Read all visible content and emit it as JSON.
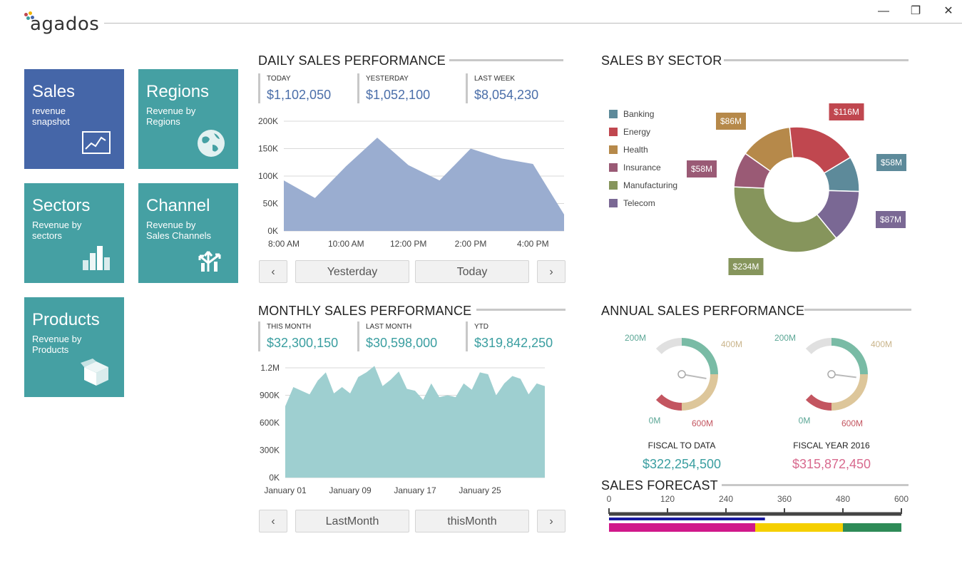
{
  "app": {
    "logo_text": "agados",
    "window_controls": {
      "minimize": "—",
      "restore": "❐",
      "close": "✕"
    }
  },
  "tiles": [
    {
      "title": "Sales",
      "subtitle": "revenue\nsnapshot",
      "icon": "line-chart-icon",
      "color": "#4566a8"
    },
    {
      "title": "Regions",
      "subtitle": "Revenue by\nRegions",
      "icon": "globe-icon",
      "color": "#45a0a3"
    },
    {
      "title": "Sectors",
      "subtitle": "Revenue by\nsectors",
      "icon": "bar-chart-icon",
      "color": "#45a0a3"
    },
    {
      "title": "Channel",
      "subtitle": "Revenue by\nSales Channels",
      "icon": "split-arrows-icon",
      "color": "#45a0a3"
    },
    {
      "title": "Products",
      "subtitle": "Revenue by\nProducts",
      "icon": "box-icon",
      "color": "#45a0a3"
    }
  ],
  "daily": {
    "title": "DAILY SALES PERFORMANCE",
    "kpis": [
      {
        "label": "TODAY",
        "value": "$1,102,050"
      },
      {
        "label": "YESTERDAY",
        "value": "$1,052,100"
      },
      {
        "label": "LAST WEEK",
        "value": "$8,054,230"
      }
    ],
    "nav": {
      "prev": "‹",
      "left": "Yesterday",
      "right": "Today",
      "next": "›"
    }
  },
  "monthly": {
    "title": "MONTHLY SALES PERFORMANCE",
    "kpis": [
      {
        "label": "THIS MONTH",
        "value": "$32,300,150"
      },
      {
        "label": "LAST MONTH",
        "value": "$30,598,000"
      },
      {
        "label": "YTD",
        "value": "$319,842,250"
      }
    ],
    "nav": {
      "prev": "‹",
      "left": "LastMonth",
      "right": "thisMonth",
      "next": "›"
    }
  },
  "sector": {
    "title": "SALES BY SECTOR"
  },
  "annual": {
    "title": "ANNUAL SALES PERFORMANCE",
    "gauges": [
      {
        "caption": "FISCAL TO DATA",
        "value": "$322,254,500",
        "value_color": "#3a9ea0",
        "labels": [
          "200M",
          "400M",
          "0M",
          "600M"
        ]
      },
      {
        "caption": "FISCAL YEAR 2016",
        "value": "$315,872,450",
        "value_color": "#d86a8e",
        "labels": [
          "200M",
          "400M",
          "0M",
          "600M"
        ]
      }
    ]
  },
  "forecast": {
    "title": "SALES FORECAST"
  },
  "chart_data": [
    {
      "type": "area",
      "name": "daily-sales",
      "title": "DAILY SALES PERFORMANCE",
      "color": "#9aadd0",
      "x": [
        0,
        1,
        2,
        3,
        4,
        5,
        6,
        7,
        8,
        9
      ],
      "values": [
        92000,
        60000,
        118000,
        170000,
        120000,
        92000,
        150000,
        132000,
        122000,
        30000
      ],
      "xlim": [
        0,
        9
      ],
      "ylim": [
        0,
        200000
      ],
      "y_ticks": [
        {
          "v": 200000,
          "label": "200K"
        },
        {
          "v": 150000,
          "label": "150K"
        },
        {
          "v": 100000,
          "label": "100K"
        },
        {
          "v": 50000,
          "label": "50K"
        },
        {
          "v": 0,
          "label": "0K"
        }
      ],
      "x_ticks": [
        {
          "x": 0,
          "label": "8:00 AM"
        },
        {
          "x": 2,
          "label": "10:00 AM"
        },
        {
          "x": 4,
          "label": "12:00 PM"
        },
        {
          "x": 6,
          "label": "2:00 PM"
        },
        {
          "x": 8,
          "label": "4:00 PM"
        }
      ]
    },
    {
      "type": "area",
      "name": "monthly-sales",
      "title": "MONTHLY SALES PERFORMANCE",
      "color": "#9ecfd0",
      "x": [
        0,
        1,
        2,
        3,
        4,
        5,
        6,
        7,
        8,
        9,
        10,
        11,
        12,
        13,
        14,
        15,
        16,
        17,
        18,
        19,
        20,
        21,
        22,
        23,
        24,
        25,
        26,
        27,
        28,
        29,
        30,
        31,
        32
      ],
      "values": [
        780000,
        990000,
        950000,
        910000,
        1060000,
        1150000,
        920000,
        990000,
        920000,
        1100000,
        1150000,
        1220000,
        1000000,
        1070000,
        1160000,
        970000,
        950000,
        850000,
        1030000,
        880000,
        900000,
        880000,
        1030000,
        960000,
        1150000,
        1130000,
        900000,
        1030000,
        1110000,
        1080000,
        910000,
        1030000,
        1000000
      ],
      "xlim": [
        0,
        32
      ],
      "ylim": [
        0,
        1200000
      ],
      "y_ticks": [
        {
          "v": 1200000,
          "label": "1.2M"
        },
        {
          "v": 900000,
          "label": "900K"
        },
        {
          "v": 600000,
          "label": "600K"
        },
        {
          "v": 300000,
          "label": "300K"
        },
        {
          "v": 0,
          "label": "0K"
        }
      ],
      "x_ticks": [
        {
          "x": 0,
          "label": "January 01"
        },
        {
          "x": 8,
          "label": "January 09"
        },
        {
          "x": 16,
          "label": "January 17"
        },
        {
          "x": 24,
          "label": "January 25"
        }
      ]
    },
    {
      "type": "pie",
      "name": "sales-by-sector",
      "title": "SALES BY SECTOR",
      "donut": true,
      "slices": [
        {
          "name": "Banking",
          "value": 58,
          "label": "$58M",
          "color": "#5d8a9a"
        },
        {
          "name": "Telecom",
          "value": 87,
          "label": "$87M",
          "color": "#7a6894"
        },
        {
          "name": "Manufacturing",
          "value": 234,
          "label": "$234M",
          "color": "#86955c"
        },
        {
          "name": "Insurance",
          "value": 58,
          "label": "$58M",
          "color": "#9a5a75"
        },
        {
          "name": "Health",
          "value": 86,
          "label": "$86M",
          "color": "#b6894a"
        },
        {
          "name": "Energy",
          "value": 116,
          "label": "$116M",
          "color": "#c0474f"
        }
      ],
      "legend": [
        "Banking",
        "Energy",
        "Health",
        "Insurance",
        "Manufacturing",
        "Telecom"
      ]
    },
    {
      "type": "bar",
      "name": "sales-forecast",
      "title": "SALES FORECAST",
      "xlim": [
        0,
        600
      ],
      "ticks": [
        0,
        120,
        240,
        360,
        480,
        600
      ],
      "marker_value": 320,
      "marker_color": "#1a1aa0",
      "ranges": [
        {
          "from": 0,
          "to": 300,
          "color": "#d0188a"
        },
        {
          "from": 300,
          "to": 480,
          "color": "#f5cf00"
        },
        {
          "from": 480,
          "to": 600,
          "color": "#2e8b57"
        }
      ]
    },
    {
      "type": "gauge",
      "name": "fiscal-to-date-gauge",
      "min": 0,
      "max": 600,
      "value": 322,
      "bands": [
        {
          "from": 0,
          "to": 100,
          "color": "#e0e0e0"
        },
        {
          "from": 100,
          "to": 300,
          "color": "#79bba5"
        },
        {
          "from": 300,
          "to": 500,
          "color": "#ddc69a"
        },
        {
          "from": 500,
          "to": 600,
          "color": "#c35560"
        }
      ]
    },
    {
      "type": "gauge",
      "name": "fiscal-year-2016-gauge",
      "min": 0,
      "max": 600,
      "value": 316,
      "bands": [
        {
          "from": 0,
          "to": 100,
          "color": "#e0e0e0"
        },
        {
          "from": 100,
          "to": 300,
          "color": "#79bba5"
        },
        {
          "from": 300,
          "to": 500,
          "color": "#ddc69a"
        },
        {
          "from": 500,
          "to": 600,
          "color": "#c35560"
        }
      ]
    }
  ]
}
